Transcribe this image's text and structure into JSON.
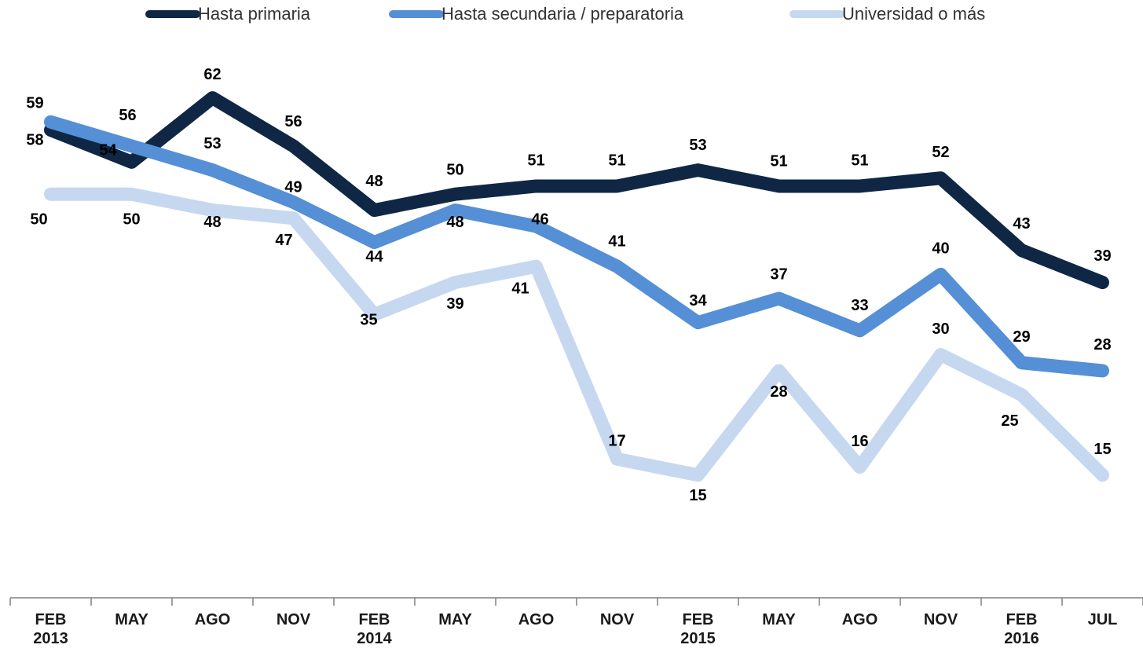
{
  "chart_data": {
    "type": "line",
    "categories": [
      "FEB\n2013",
      "MAY",
      "AGO",
      "NOV",
      "FEB\n2014",
      "MAY",
      "AGO",
      "NOV",
      "FEB\n2015",
      "MAY",
      "AGO",
      "NOV",
      "FEB\n2016",
      "JUL"
    ],
    "series": [
      {
        "name": "Hasta primaria",
        "color": "#0f2745",
        "values": [
          58,
          54,
          62,
          56,
          48,
          50,
          51,
          51,
          53,
          51,
          51,
          52,
          43,
          39
        ]
      },
      {
        "name": "Hasta secundaria / preparatoria",
        "color": "#558fd6",
        "values": [
          59,
          56,
          53,
          49,
          44,
          48,
          46,
          41,
          34,
          37,
          33,
          40,
          29,
          28
        ]
      },
      {
        "name": "Universidad o más",
        "color": "#c6d8f0",
        "values": [
          50,
          50,
          48,
          47,
          35,
          39,
          41,
          17,
          15,
          28,
          16,
          30,
          25,
          15
        ]
      }
    ],
    "ylim": [
      0,
      74
    ],
    "legend": "top"
  }
}
